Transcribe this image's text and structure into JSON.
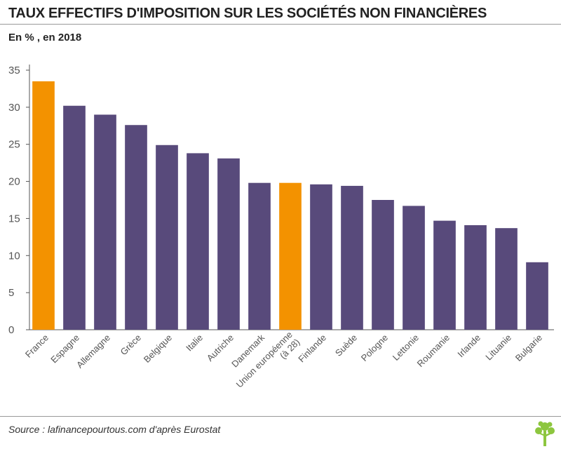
{
  "header": {
    "title": "TAUX EFFECTIFS D'IMPOSITION SUR LES SOCIÉTÉS NON FINANCIÈRES",
    "subtitle": "En % , en 2018"
  },
  "footer": {
    "source": "Source : lafinancepourtous.com d'après Eurostat",
    "logo_icon": "tree-icon"
  },
  "colors": {
    "highlight": "#F39200",
    "default": "#584A7B",
    "axis": "#555555",
    "logo": "#8DC63F"
  },
  "chart_data": {
    "type": "bar",
    "title": "TAUX EFFECTIFS D'IMPOSITION SUR LES SOCIÉTÉS NON FINANCIÈRES",
    "subtitle": "En % , en 2018",
    "xlabel": "",
    "ylabel": "",
    "ylim": [
      0,
      35
    ],
    "yticks": [
      0,
      5,
      10,
      15,
      20,
      25,
      30,
      35
    ],
    "grid": false,
    "categories": [
      "France",
      "Espagne",
      "Allemagne",
      "Grèce",
      "Belgique",
      "Italie",
      "Autriche",
      "Danemark",
      "Union européenne\n(à 28)",
      "Finlande",
      "Suède",
      "Pologne",
      "Lettonie",
      "Roumanie",
      "Irlande",
      "Lituanie",
      "Bulgarie"
    ],
    "values": [
      33.5,
      30.2,
      29.0,
      27.6,
      24.9,
      23.8,
      23.1,
      19.8,
      19.8,
      19.6,
      19.4,
      17.5,
      16.7,
      14.7,
      14.1,
      13.7,
      9.1
    ],
    "highlighted": [
      "France",
      "Union européenne\n(à 28)"
    ]
  }
}
